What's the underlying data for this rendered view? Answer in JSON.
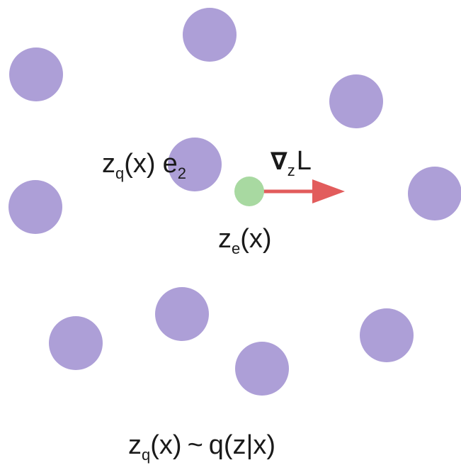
{
  "colors": {
    "codebook": "#ad9fd7",
    "encoder_output": "#a8d9a1",
    "gradient_arrow": "#e25c5c",
    "text": "#1a1a1a"
  },
  "labels": {
    "zq_e2": {
      "z": "z",
      "z_sub": "q",
      "arg": "(x)",
      "e": "e",
      "e_sub": "2"
    },
    "gradient": {
      "nabla": "∇",
      "sub": "z",
      "loss": "L"
    },
    "encoder": {
      "z": "z",
      "z_sub": "e",
      "arg": "(x)"
    },
    "distribution": {
      "z": "z",
      "z_sub": "q",
      "arg": "(x)",
      "tilde": "~",
      "q": "q(z|x)"
    }
  }
}
